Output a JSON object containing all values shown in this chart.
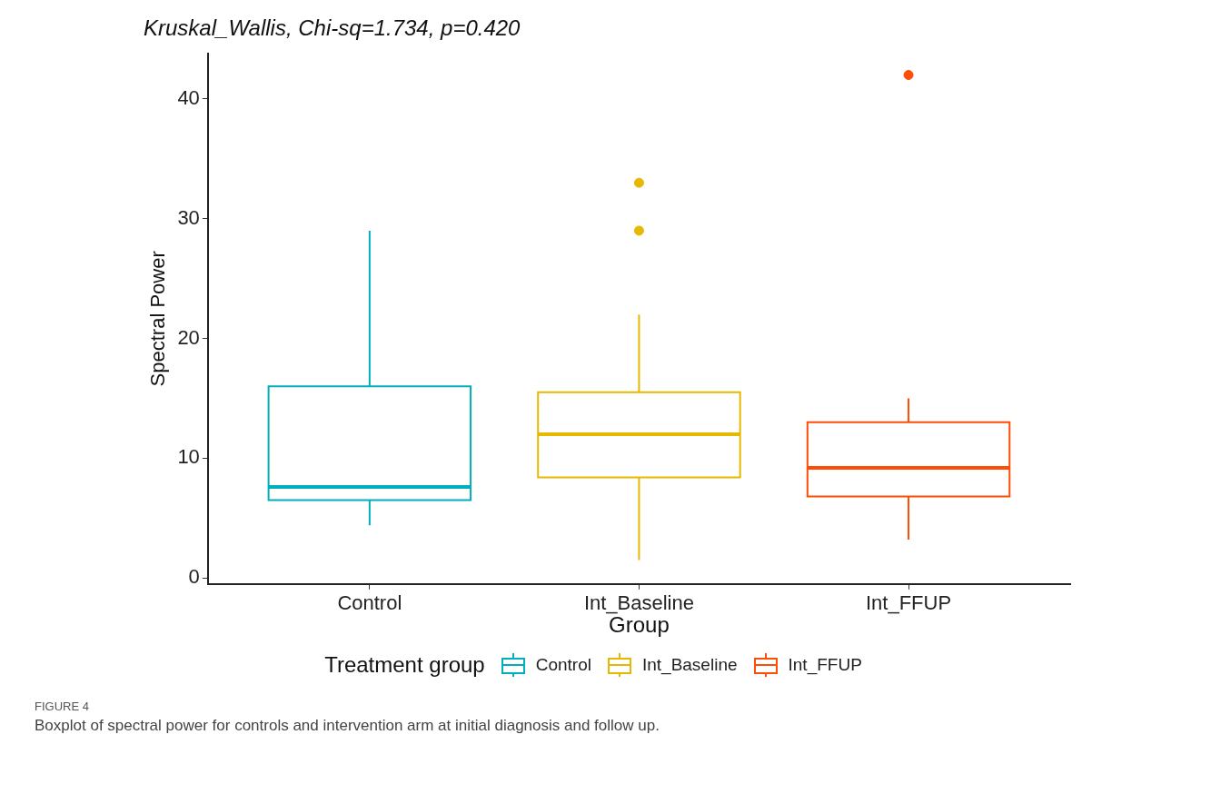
{
  "chart_data": {
    "type": "box",
    "title": "Kruskal_Wallis, Chi-sq=1.734, p=0.420",
    "xlabel": "Group",
    "ylabel": "Spectral Power",
    "legend_title": "Treatment group",
    "categories": [
      "Control",
      "Int_Baseline",
      "Int_FFUP"
    ],
    "series": [
      {
        "name": "Control",
        "color": "#00afbb",
        "boxes": [
          {
            "low": 4.4,
            "q1": 6.5,
            "median": 7.6,
            "q3": 16,
            "high": 29
          },
          null,
          null
        ]
      },
      {
        "name": "Int_Baseline",
        "color": "#e7b800",
        "boxes": [
          null,
          {
            "low": 1.5,
            "q1": 8.4,
            "median": 12,
            "q3": 15.5,
            "high": 22,
            "outliers": [
              29,
              33
            ]
          },
          null
        ]
      },
      {
        "name": "Int_FFUP",
        "color": "#fc4e07",
        "boxes": [
          null,
          null,
          {
            "low": 3.2,
            "q1": 6.8,
            "median": 9.2,
            "q3": 13,
            "high": 15,
            "outliers": [
              42
            ]
          }
        ]
      }
    ],
    "ylim": [
      -0.5,
      43.8
    ],
    "yticks": [
      0,
      10,
      20,
      30,
      40
    ],
    "grid": false,
    "legend": "bottom",
    "marker": "circle",
    "annotations": [
      "FIGURE 4",
      "Boxplot of spectral power for controls and intervention arm at initial diagnosis and follow up."
    ]
  }
}
